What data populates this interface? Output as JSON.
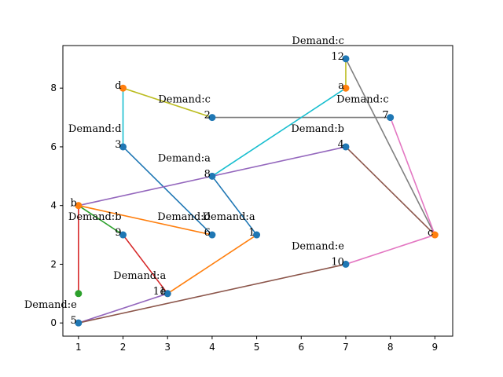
{
  "chart_data": {
    "type": "scatter",
    "title": "",
    "xlabel": "",
    "ylabel": "",
    "xlim": [
      0.65,
      9.4
    ],
    "ylim": [
      -0.45,
      9.45
    ],
    "xticks": [
      "1",
      "2",
      "3",
      "4",
      "5",
      "6",
      "7",
      "8",
      "9"
    ],
    "yticks": [
      "0",
      "2",
      "4",
      "6",
      "8"
    ],
    "grid": false,
    "legend": "none",
    "points": [
      {
        "id": "p-d",
        "x": 2,
        "y": 8,
        "color": "#ff7f0e",
        "label": "d",
        "demand": ""
      },
      {
        "id": "p-a",
        "x": 7,
        "y": 8,
        "color": "#ff7f0e",
        "label": "a",
        "demand": ""
      },
      {
        "id": "p-b",
        "x": 1,
        "y": 4,
        "color": "#ff7f0e",
        "label": "b",
        "demand": ""
      },
      {
        "id": "p-c",
        "x": 9,
        "y": 3,
        "color": "#ff7f0e",
        "label": "c",
        "demand": ""
      },
      {
        "id": "p-e",
        "x": 3,
        "y": 1,
        "color": "#ff7f0e",
        "label": "e",
        "demand": ""
      },
      {
        "id": "p-12",
        "x": 7,
        "y": 9,
        "color": "#1f77b4",
        "label": "12",
        "demand": "Demand:c"
      },
      {
        "id": "p-2",
        "x": 4,
        "y": 7,
        "color": "#1f77b4",
        "label": "2",
        "demand": "Demand:c"
      },
      {
        "id": "p-7",
        "x": 8,
        "y": 7,
        "color": "#1f77b4",
        "label": "7",
        "demand": "Demand:c"
      },
      {
        "id": "p-3",
        "x": 2,
        "y": 6,
        "color": "#1f77b4",
        "label": "3",
        "demand": "Demand:d"
      },
      {
        "id": "p-4",
        "x": 7,
        "y": 6,
        "color": "#1f77b4",
        "label": "4",
        "demand": "Demand:b"
      },
      {
        "id": "p-8",
        "x": 4,
        "y": 5,
        "color": "#1f77b4",
        "label": "8",
        "demand": "Demand:a"
      },
      {
        "id": "p-9",
        "x": 2,
        "y": 3,
        "color": "#1f77b4",
        "label": "9",
        "demand": "Demand:b"
      },
      {
        "id": "p-6",
        "x": 4,
        "y": 3,
        "color": "#1f77b4",
        "label": "6",
        "demand": "Demand:d"
      },
      {
        "id": "p-1",
        "x": 5,
        "y": 3,
        "color": "#1f77b4",
        "label": "1",
        "demand": "Demand:a"
      },
      {
        "id": "p-10",
        "x": 7,
        "y": 2,
        "color": "#1f77b4",
        "label": "10",
        "demand": "Demand:e"
      },
      {
        "id": "p-11",
        "x": 3,
        "y": 1,
        "color": "#1f77b4",
        "label": "11",
        "demand": "Demand:a"
      },
      {
        "id": "p-5",
        "x": 1,
        "y": 0,
        "color": "#1f77b4",
        "label": "5",
        "demand": "Demand:e"
      },
      {
        "id": "p-green",
        "x": 1,
        "y": 1,
        "color": "#2ca02c",
        "label": "",
        "demand": ""
      }
    ],
    "edges": [
      {
        "from": [
          2,
          8
        ],
        "to": [
          4,
          7
        ],
        "color": "#bcbd22"
      },
      {
        "from": [
          2,
          8
        ],
        "to": [
          2,
          6
        ],
        "color": "#17becf"
      },
      {
        "from": [
          2,
          6
        ],
        "to": [
          4,
          3
        ],
        "color": "#1f77b4"
      },
      {
        "from": [
          4,
          7
        ],
        "to": [
          8,
          7
        ],
        "color": "#7f7f7f"
      },
      {
        "from": [
          7,
          8
        ],
        "to": [
          7,
          9
        ],
        "color": "#bcbd22"
      },
      {
        "from": [
          7,
          8
        ],
        "to": [
          4,
          5
        ],
        "color": "#17becf"
      },
      {
        "from": [
          4,
          5
        ],
        "to": [
          5,
          3
        ],
        "color": "#1f77b4"
      },
      {
        "from": [
          7,
          9
        ],
        "to": [
          9,
          3
        ],
        "color": "#7f7f7f"
      },
      {
        "from": [
          8,
          7
        ],
        "to": [
          9,
          3
        ],
        "color": "#e377c2"
      },
      {
        "from": [
          7,
          6
        ],
        "to": [
          1,
          4
        ],
        "color": "#9467bd"
      },
      {
        "from": [
          7,
          6
        ],
        "to": [
          9,
          3
        ],
        "color": "#8c564b"
      },
      {
        "from": [
          1,
          4
        ],
        "to": [
          4,
          3
        ],
        "color": "#ff7f0e"
      },
      {
        "from": [
          1,
          4
        ],
        "to": [
          2,
          3
        ],
        "color": "#2ca02c"
      },
      {
        "from": [
          1,
          4
        ],
        "to": [
          1,
          1
        ],
        "color": "#d62728"
      },
      {
        "from": [
          2,
          3
        ],
        "to": [
          3,
          1
        ],
        "color": "#d62728"
      },
      {
        "from": [
          5,
          3
        ],
        "to": [
          3,
          1
        ],
        "color": "#ff7f0e"
      },
      {
        "from": [
          3,
          1
        ],
        "to": [
          1,
          0
        ],
        "color": "#9467bd"
      },
      {
        "from": [
          1,
          0
        ],
        "to": [
          7,
          2
        ],
        "color": "#8c564b"
      },
      {
        "from": [
          7,
          2
        ],
        "to": [
          9,
          3
        ],
        "color": "#e377c2"
      }
    ]
  }
}
